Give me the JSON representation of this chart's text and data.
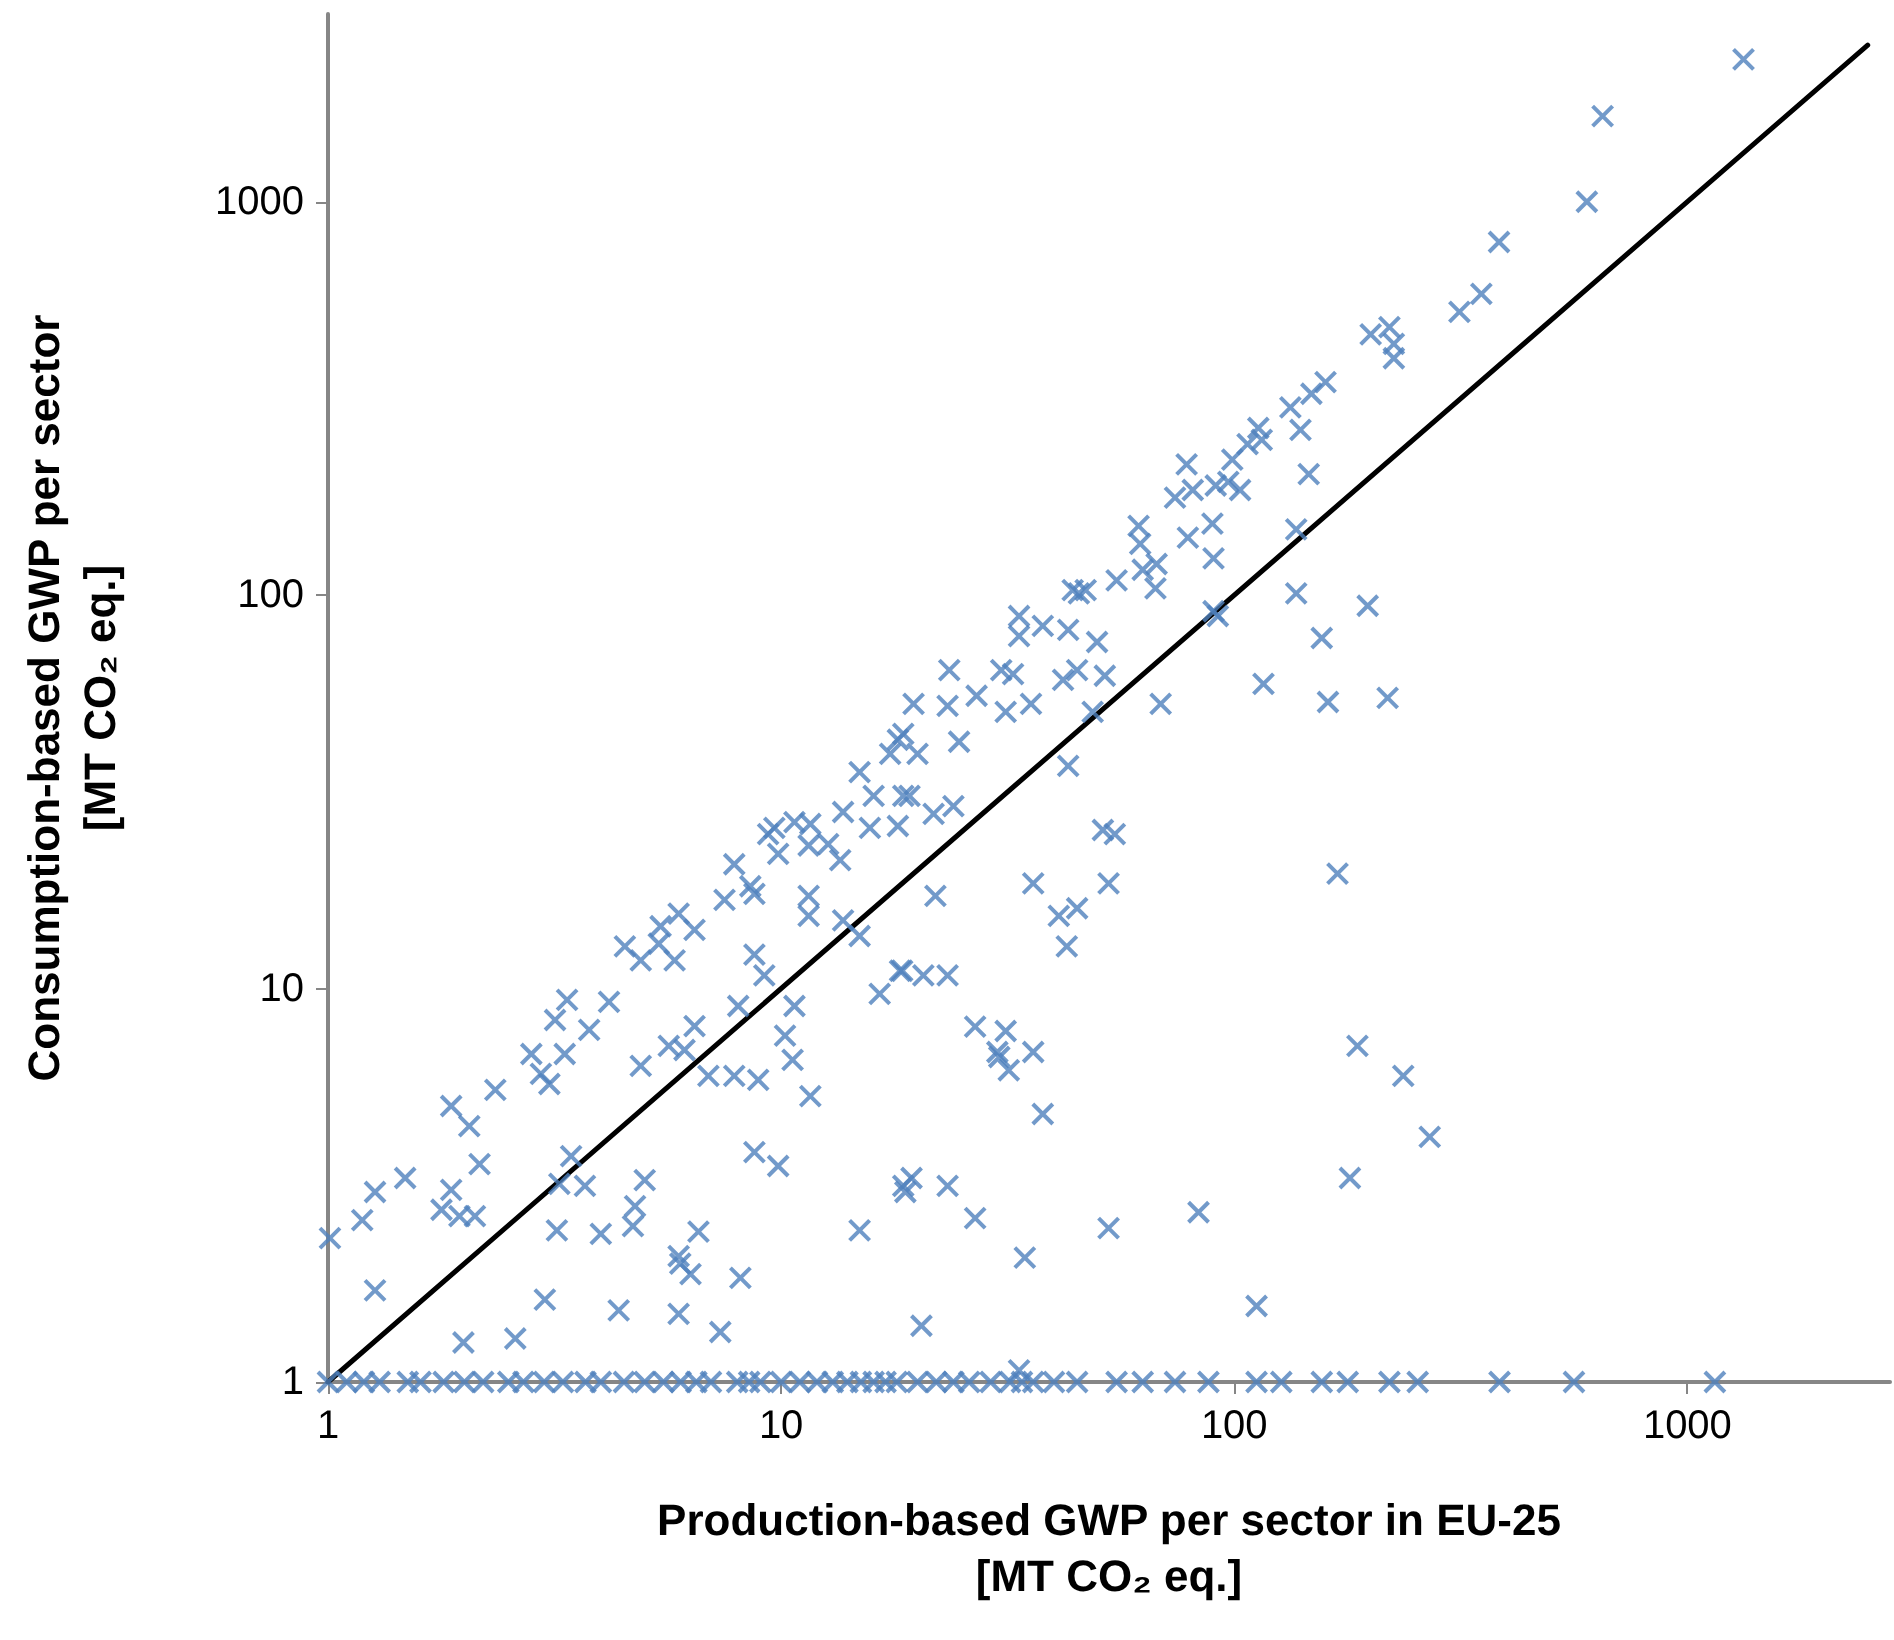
{
  "chart_data": {
    "type": "scatter",
    "xlabel": "Production-based GWP per sector in EU-25\n[MT CO₂ eq.]",
    "ylabel": "Consumption-based GWP per sector\n[MT CO₂ eq.]",
    "log": "xy",
    "marker": "cross",
    "xlim": [
      1,
      2800
    ],
    "ylim": [
      1,
      3000
    ],
    "xticks": [
      1,
      10,
      100,
      1000
    ],
    "yticks": [
      1,
      10,
      100,
      1000
    ],
    "series": [
      {
        "color": "#4f81bd",
        "x": [
          1330,
          650,
          600,
          384,
          351,
          314,
          200,
          220,
          225,
          225,
          133,
          148,
          159,
          140,
          113,
          115,
          107,
          99,
          146,
          78.5,
          74,
          81,
          91,
          97,
          103,
          89.5,
          79,
          90,
          137,
          137,
          197,
          90,
          61.5,
          62,
          67.4,
          62.8,
          55,
          67,
          45.4,
          44,
          47,
          33.5,
          33.5,
          37.8,
          43,
          49.8,
          30.6,
          32.5,
          23.5,
          27,
          23.3,
          31.3,
          35.6,
          41.9,
          45,
          51.8,
          48.7,
          68.8,
          92,
          116,
          156,
          161,
          218,
          169,
          187,
          43,
          24.7,
          19.6,
          18.6,
          18.1,
          20,
          17.4,
          19.2,
          21.7,
          24,
          18.1,
          51.3,
          54.5,
          21.9,
          36,
          52.8,
          41,
          45,
          42.7,
          18.5,
          20.6,
          23.3,
          26.8,
          31.3,
          30,
          36,
          30.3,
          31.8,
          37.8,
          236,
          270,
          180,
          19.4,
          18.8,
          23.3,
          26.8,
          34.5,
          52.8,
          83.4,
          20.4,
          112,
          33.5,
          14.9,
          16,
          18.6,
          13.7,
          15.7,
          9.66,
          10.7,
          11.6,
          9.36,
          9.85,
          11.5,
          12.7,
          13.5,
          7.88,
          8.55,
          7.5,
          8.73,
          11.5,
          11.5,
          13.7,
          14.9,
          4.52,
          4.9,
          5.37,
          5.94,
          5.42,
          6.44,
          5.82,
          8.73,
          9.18,
          16.5,
          18.3,
          3.37,
          4.17,
          3.17,
          3.77,
          2.81,
          3.33,
          2.95,
          3.08,
          4.9,
          5.65,
          6.12,
          6.44,
          6.91,
          7.88,
          8.9,
          8.04,
          10.7,
          10.2,
          10.6,
          11.6,
          1.87,
          2.05,
          2.34,
          2.16,
          1.87,
          1.27,
          1.48,
          1.19,
          1.01,
          1.78,
          1.95,
          2.11,
          3.44,
          3.24,
          3.69,
          5,
          4.76,
          4.71,
          8.73,
          9.85,
          3.2,
          4,
          5.94,
          5.99,
          6.31,
          6.57,
          8.13,
          14.9,
          18.6,
          1.27,
          3.01,
          4.38,
          5.94,
          7.34,
          1.99,
          2.59,
          1,
          1.1,
          1.2,
          1.3,
          1.5,
          1.6,
          1.8,
          2,
          2.2,
          2.5,
          2.7,
          3,
          3.3,
          3.7,
          4,
          4.5,
          5,
          5.5,
          6,
          6.5,
          7,
          8,
          8.5,
          9,
          10,
          11,
          12,
          13,
          14,
          15,
          16,
          17,
          18,
          20,
          22,
          24,
          26,
          29,
          32,
          34,
          36,
          40,
          45,
          55,
          62.8,
          74,
          87.7,
          112,
          127,
          156,
          178,
          220,
          254,
          385,
          562,
          1150
        ],
        "values": [
          2300,
          1650,
          1000,
          790,
          583,
          525,
          460,
          480,
          400,
          435,
          300,
          325,
          348,
          263,
          266,
          248,
          242,
          221,
          203,
          215,
          177,
          185,
          190,
          194,
          185,
          152,
          140,
          124,
          147,
          101,
          94,
          91,
          150,
          135,
          120,
          116,
          109,
          104,
          101,
          103,
          103,
          88.5,
          78.7,
          83.5,
          81.6,
          76,
          64.5,
          63,
          64.5,
          55.5,
          52.3,
          50.5,
          52.9,
          60.9,
          64.5,
          62.4,
          50.5,
          52.9,
          88.5,
          59.5,
          77.8,
          53.5,
          54.8,
          19.6,
          7.15,
          36.8,
          42.4,
          52.9,
          44.4,
          42.9,
          39.5,
          39.5,
          30.9,
          27.8,
          29.1,
          25.9,
          25.3,
          24.7,
          17.2,
          18.5,
          18.5,
          15.3,
          16,
          12.8,
          11.1,
          10.8,
          10.8,
          8,
          7.8,
          6.9,
          6.9,
          6.7,
          6.2,
          4.8,
          6,
          4.2,
          3.3,
          3.3,
          3.04,
          3.15,
          2.61,
          2.07,
          2.46,
          2.7,
          1.39,
          1.56,
          1.07,
          35.5,
          30.9,
          30.9,
          28.1,
          25.6,
          25.6,
          26.5,
          26.2,
          24.7,
          22,
          23.1,
          23.3,
          21.2,
          20.7,
          18.2,
          16.8,
          17.4,
          17.2,
          15.3,
          14.9,
          13.6,
          12.8,
          11.8,
          13,
          15.5,
          14.4,
          14.1,
          11.8,
          12.2,
          10.8,
          9.69,
          11.1,
          9.36,
          9.25,
          8.32,
          7.85,
          6.82,
          6.82,
          6.07,
          5.72,
          6.36,
          7.15,
          6.98,
          8.03,
          6,
          6,
          5.86,
          9.03,
          9.03,
          7.59,
          6.59,
          5.33,
          5.03,
          4.47,
          5.53,
          3.58,
          3.08,
          3.04,
          3.3,
          2.58,
          2.32,
          2.74,
          2.64,
          2.64,
          3.75,
          3.19,
          3.15,
          3.26,
          2.8,
          2.49,
          3.84,
          3.54,
          2.43,
          2.38,
          2.09,
          2,
          1.88,
          2.41,
          1.84,
          2.43,
          3.15,
          1.71,
          1.62,
          1.52,
          1.49,
          1.34,
          1.26,
          1.29,
          1,
          1,
          1,
          1,
          1,
          1,
          1,
          1,
          1,
          1,
          1,
          1,
          1,
          1,
          1,
          1,
          1,
          1,
          1,
          1,
          1,
          1,
          1,
          1,
          1,
          1,
          1,
          1,
          1,
          1,
          1,
          1,
          1,
          1,
          1,
          1,
          1,
          1,
          1,
          1,
          1,
          1,
          1,
          1,
          1,
          1,
          1,
          1,
          1,
          1,
          1,
          1,
          1,
          1,
          1,
          1
        ]
      },
      {
        "type": "line",
        "color": "#000000",
        "marker": "none",
        "x": [
          1,
          2500
        ],
        "values": [
          1,
          2500
        ]
      }
    ]
  }
}
